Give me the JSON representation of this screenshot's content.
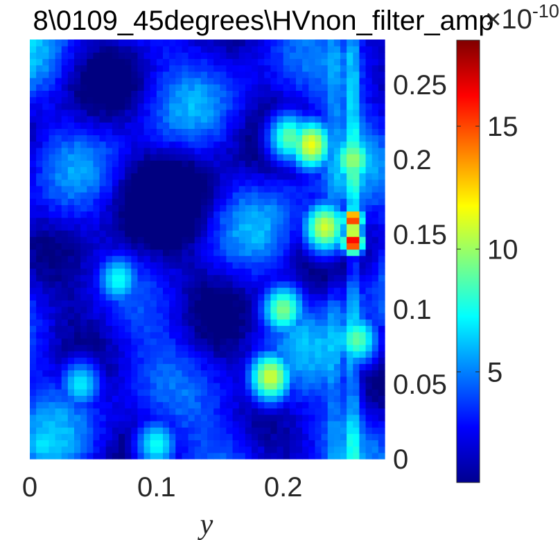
{
  "chart_data": {
    "type": "heatmap",
    "title": "8\\0109_45degrees\\HVnon_filter_amp",
    "xlabel": "y",
    "ylabel": "",
    "xlim": [
      0,
      0.28
    ],
    "ylim": [
      0,
      0.28
    ],
    "x_ticks": [
      0,
      0.1,
      0.2
    ],
    "x_tick_labels": [
      "0",
      "0.1",
      "0.2"
    ],
    "y_ticks": [
      0,
      0.05,
      0.1,
      0.15,
      0.2,
      0.25
    ],
    "y_tick_labels": [
      "0",
      "0.05",
      "0.1",
      "0.15",
      "0.2",
      "0.25"
    ],
    "y_axis_side": "right",
    "colormap": "jet",
    "colorbar": {
      "location": "right",
      "clim": [
        0.5,
        18.5
      ],
      "ticks": [
        5,
        10,
        15
      ],
      "tick_labels": [
        "5",
        "10",
        "15"
      ],
      "exponent_label": "×10",
      "exponent_power": "-10"
    },
    "grid_size": [
      56,
      66
    ],
    "hotspots": [
      {
        "x": 0.255,
        "y": 0.145,
        "value": 18.0
      },
      {
        "x": 0.255,
        "y": 0.16,
        "value": 16.5
      },
      {
        "x": 0.233,
        "y": 0.155,
        "value": 11.0
      },
      {
        "x": 0.222,
        "y": 0.21,
        "value": 11.5
      },
      {
        "x": 0.205,
        "y": 0.215,
        "value": 9.0
      },
      {
        "x": 0.19,
        "y": 0.055,
        "value": 11.0
      },
      {
        "x": 0.2,
        "y": 0.1,
        "value": 9.5
      },
      {
        "x": 0.258,
        "y": 0.08,
        "value": 9.0
      },
      {
        "x": 0.255,
        "y": 0.2,
        "value": 10.0
      },
      {
        "x": 0.07,
        "y": 0.12,
        "value": 7.5
      },
      {
        "x": 0.04,
        "y": 0.05,
        "value": 7.0
      },
      {
        "x": 0.1,
        "y": 0.01,
        "value": 7.5
      },
      {
        "x": 0.01,
        "y": 0.01,
        "value": 7.0
      }
    ]
  }
}
